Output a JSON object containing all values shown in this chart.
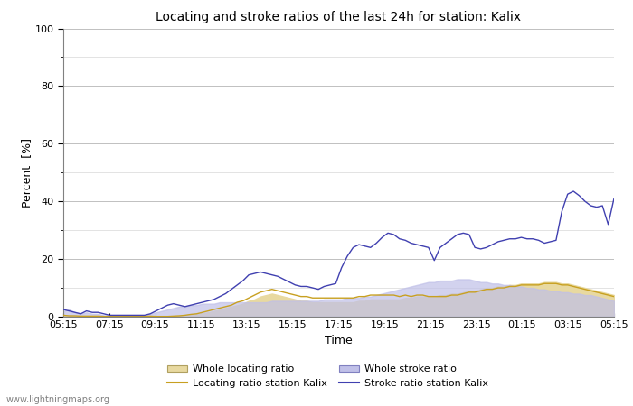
{
  "title": "Locating and stroke ratios of the last 24h for station: Kalix",
  "xlabel": "Time",
  "ylabel": "Percent  [%]",
  "ylim": [
    0,
    100
  ],
  "yticks_major": [
    0,
    20,
    40,
    60,
    80,
    100
  ],
  "yticks_minor": [
    10,
    30,
    50,
    70,
    90
  ],
  "xtick_labels": [
    "05:15",
    "07:15",
    "09:15",
    "11:15",
    "13:15",
    "15:15",
    "17:15",
    "19:15",
    "21:15",
    "23:15",
    "01:15",
    "03:15",
    "05:15"
  ],
  "watermark": "www.lightningmaps.org",
  "color_locating_fill": "#e8d9a0",
  "color_locating_line": "#c8a020",
  "color_stroke_fill": "#c0c0e8",
  "color_stroke_line": "#4040b0",
  "whole_locating": [
    0.5,
    0.4,
    0.3,
    0.3,
    0.2,
    0.2,
    0.2,
    0.1,
    0.1,
    0.1,
    0.1,
    0.1,
    0.1,
    0.1,
    0.1,
    0.2,
    0.2,
    0.2,
    0.2,
    0.3,
    0.5,
    0.5,
    0.8,
    1.0,
    1.2,
    1.5,
    2.0,
    2.5,
    3.0,
    3.5,
    4.0,
    4.5,
    5.5,
    6.0,
    7.0,
    7.5,
    8.0,
    7.5,
    7.0,
    6.5,
    6.0,
    5.5,
    5.5,
    5.0,
    5.0,
    5.0,
    5.0,
    5.0,
    5.0,
    5.0,
    5.0,
    5.5,
    5.5,
    6.0,
    6.0,
    6.0,
    6.0,
    6.0,
    6.0,
    6.5,
    6.5,
    7.0,
    7.0,
    7.0,
    7.0,
    7.5,
    7.5,
    8.0,
    8.0,
    8.5,
    9.0,
    9.0,
    9.5,
    10.0,
    10.0,
    10.5,
    10.5,
    11.0,
    11.0,
    11.5,
    11.5,
    11.5,
    11.5,
    12.0,
    12.0,
    12.0,
    11.5,
    11.5,
    11.0,
    10.5,
    10.0,
    9.5,
    9.0,
    8.5,
    8.0,
    7.5
  ],
  "locating_station": [
    0.5,
    0.3,
    0.3,
    0.2,
    0.2,
    0.2,
    0.2,
    0.1,
    0.1,
    0.1,
    0.1,
    0.1,
    0.1,
    0.1,
    0.1,
    0.2,
    0.1,
    0.1,
    0.1,
    0.2,
    0.3,
    0.5,
    0.8,
    1.0,
    1.5,
    2.0,
    2.5,
    3.0,
    3.5,
    4.0,
    5.0,
    5.5,
    6.5,
    7.5,
    8.5,
    9.0,
    9.5,
    9.0,
    8.5,
    8.0,
    7.5,
    7.0,
    7.0,
    6.5,
    6.5,
    6.5,
    6.5,
    6.5,
    6.5,
    6.5,
    6.5,
    7.0,
    7.0,
    7.5,
    7.5,
    7.5,
    7.5,
    7.5,
    7.0,
    7.5,
    7.0,
    7.5,
    7.5,
    7.0,
    7.0,
    7.0,
    7.0,
    7.5,
    7.5,
    8.0,
    8.5,
    8.5,
    9.0,
    9.5,
    9.5,
    10.0,
    10.0,
    10.5,
    10.5,
    11.0,
    11.0,
    11.0,
    11.0,
    11.5,
    11.5,
    11.5,
    11.0,
    11.0,
    10.5,
    10.0,
    9.5,
    9.0,
    8.5,
    8.0,
    7.5,
    7.0
  ],
  "whole_stroke": [
    2.0,
    2.5,
    1.5,
    1.0,
    1.5,
    1.0,
    1.0,
    0.5,
    0.5,
    0.5,
    0.5,
    0.5,
    0.5,
    0.5,
    0.5,
    1.0,
    1.5,
    2.0,
    2.5,
    3.0,
    3.5,
    3.5,
    4.0,
    4.0,
    4.5,
    4.5,
    4.5,
    5.0,
    5.0,
    5.0,
    5.0,
    5.0,
    5.0,
    5.0,
    5.0,
    5.0,
    5.5,
    5.5,
    5.5,
    5.5,
    5.5,
    5.5,
    5.5,
    5.5,
    5.5,
    6.0,
    6.0,
    6.0,
    6.0,
    6.5,
    6.5,
    6.5,
    7.0,
    7.0,
    7.5,
    8.0,
    8.5,
    9.0,
    9.5,
    10.0,
    10.5,
    11.0,
    11.5,
    12.0,
    12.0,
    12.5,
    12.5,
    12.5,
    13.0,
    13.0,
    13.0,
    12.5,
    12.0,
    12.0,
    11.5,
    11.5,
    11.0,
    11.0,
    10.5,
    10.5,
    10.0,
    10.0,
    9.5,
    9.5,
    9.0,
    9.0,
    8.5,
    8.5,
    8.0,
    8.0,
    7.5,
    7.5,
    7.0,
    6.5,
    6.0,
    5.5
  ],
  "stroke_station": [
    2.5,
    2.0,
    1.5,
    1.0,
    2.0,
    1.5,
    1.5,
    1.0,
    0.5,
    0.5,
    0.5,
    0.5,
    0.5,
    0.5,
    0.5,
    1.0,
    2.0,
    3.0,
    4.0,
    4.5,
    4.0,
    3.5,
    4.0,
    4.5,
    5.0,
    5.5,
    6.0,
    7.0,
    8.0,
    9.5,
    11.0,
    12.5,
    14.5,
    15.0,
    15.5,
    15.0,
    14.5,
    14.0,
    13.0,
    12.0,
    11.0,
    10.5,
    10.5,
    10.0,
    9.5,
    10.5,
    11.0,
    11.5,
    17.0,
    21.0,
    24.0,
    25.0,
    24.5,
    24.0,
    25.5,
    27.5,
    29.0,
    28.5,
    27.0,
    26.5,
    25.5,
    25.0,
    24.5,
    24.0,
    19.5,
    24.0,
    25.5,
    27.0,
    28.5,
    29.0,
    28.5,
    24.0,
    23.5,
    24.0,
    25.0,
    26.0,
    26.5,
    27.0,
    27.0,
    27.5,
    27.0,
    27.0,
    26.5,
    25.5,
    26.0,
    26.5,
    36.5,
    42.5,
    43.5,
    42.0,
    40.0,
    38.5,
    38.0,
    38.5,
    32.0,
    41.0
  ]
}
